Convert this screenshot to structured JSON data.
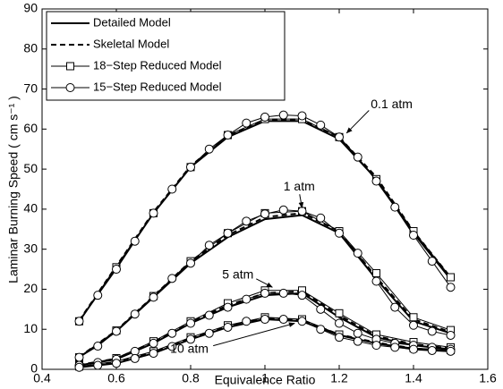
{
  "chart_data": {
    "type": "line",
    "xlabel": "Equivalence Ratio",
    "ylabel": "Laminar Burning Speed  ( cm s⁻¹ )",
    "xlim": [
      0.4,
      1.6
    ],
    "xticks": [
      0.4,
      0.6,
      0.8,
      1,
      1.2,
      1.4,
      1.6
    ],
    "ylim": [
      0,
      90
    ],
    "yticks": [
      0,
      10,
      20,
      30,
      40,
      50,
      60,
      70,
      80,
      90
    ],
    "annotations": [
      "0.1 atm",
      "1 atm",
      "5 atm",
      "10 atm"
    ],
    "series": [
      {
        "name": "Detailed Model",
        "color": "#000000",
        "linestyle": "solid",
        "linewidth": 2,
        "marker": "none",
        "x": [
          0.5,
          0.6,
          0.7,
          0.8,
          0.9,
          1.0,
          1.1,
          1.2,
          1.3,
          1.4,
          1.5
        ],
        "curves": [
          [
            12,
            25.5,
            39,
            50.5,
            58,
            62,
            62,
            57.5,
            47.5,
            34,
            22.5
          ],
          [
            3,
            9.5,
            18,
            26.5,
            33,
            37.5,
            38.5,
            34,
            22.5,
            12,
            9
          ],
          [
            1,
            2.5,
            6.5,
            11.5,
            15.5,
            18.5,
            19,
            13,
            8,
            6,
            5
          ],
          [
            0.5,
            1.5,
            4,
            7.5,
            10.5,
            12.5,
            12,
            8.5,
            6.5,
            5,
            4.5
          ]
        ]
      },
      {
        "name": "Skeletal Model",
        "color": "#000000",
        "linestyle": "dashed",
        "linewidth": 2,
        "marker": "none",
        "x": [
          0.5,
          0.6,
          0.7,
          0.8,
          0.9,
          1.0,
          1.1,
          1.2,
          1.3,
          1.4,
          1.5
        ],
        "curves": [
          [
            12.2,
            25.8,
            39.3,
            50.8,
            58.3,
            62.4,
            62.4,
            58,
            48,
            34.5,
            23
          ],
          [
            3.1,
            9.7,
            18.3,
            27,
            33.5,
            38,
            39,
            34.5,
            23,
            12.5,
            9.3
          ],
          [
            1.1,
            2.7,
            6.8,
            11.8,
            16,
            19,
            19.5,
            13.5,
            8.3,
            6.3,
            5.2
          ],
          [
            0.6,
            1.7,
            4.3,
            7.8,
            10.8,
            12.8,
            12.3,
            8.7,
            6.7,
            5.2,
            4.6
          ]
        ]
      },
      {
        "name": "18−Step Reduced Model",
        "color": "#000000",
        "linestyle": "solid",
        "linewidth": 1,
        "marker": "square",
        "x": [
          0.5,
          0.6,
          0.7,
          0.8,
          0.9,
          1.0,
          1.1,
          1.2,
          1.3,
          1.4,
          1.5
        ],
        "curves": [
          [
            12,
            25.5,
            39,
            50.5,
            58.5,
            62.5,
            62.5,
            58,
            47.5,
            34.5,
            23
          ],
          [
            3,
            9.7,
            18.3,
            27,
            34,
            39,
            39.5,
            34.5,
            24,
            13,
            9.8
          ],
          [
            1,
            2.8,
            7,
            12,
            16.5,
            19.7,
            19.7,
            14,
            8.7,
            6.8,
            5.5
          ],
          [
            0.7,
            2,
            4.5,
            8,
            11,
            13,
            12.5,
            8.7,
            6.5,
            5.3,
            4.8
          ]
        ]
      },
      {
        "name": "15−Step Reduced Model",
        "color": "#000000",
        "linestyle": "solid",
        "linewidth": 1,
        "marker": "circle",
        "x": [
          0.5,
          0.55,
          0.6,
          0.65,
          0.7,
          0.75,
          0.8,
          0.85,
          0.9,
          0.95,
          1.0,
          1.05,
          1.1,
          1.15,
          1.2,
          1.25,
          1.3,
          1.35,
          1.4,
          1.45,
          1.5
        ],
        "curves": [
          [
            12,
            18.5,
            25,
            32,
            39,
            45,
            50.5,
            55,
            58.5,
            61.5,
            63,
            63.5,
            63.3,
            61,
            58,
            53,
            47,
            40.5,
            33.5,
            27,
            20.5
          ],
          [
            3,
            5.8,
            9.5,
            13.8,
            18,
            22.7,
            26.5,
            31,
            34,
            37,
            38.8,
            39.8,
            39.5,
            37.8,
            34,
            29,
            22,
            15.5,
            11,
            9.5,
            8.5
          ],
          [
            1,
            1.7,
            2.5,
            4.5,
            6.5,
            9,
            11.5,
            13.5,
            15.5,
            17.5,
            19,
            19,
            18.5,
            15,
            11.5,
            9,
            7.5,
            6.5,
            6,
            5.5,
            5
          ],
          [
            0.5,
            1,
            1.5,
            2.7,
            4,
            5.7,
            7.5,
            9,
            10.5,
            12,
            12.5,
            12.5,
            12,
            10,
            8,
            7,
            6,
            5.5,
            5,
            4.7,
            4.5
          ]
        ]
      }
    ]
  }
}
